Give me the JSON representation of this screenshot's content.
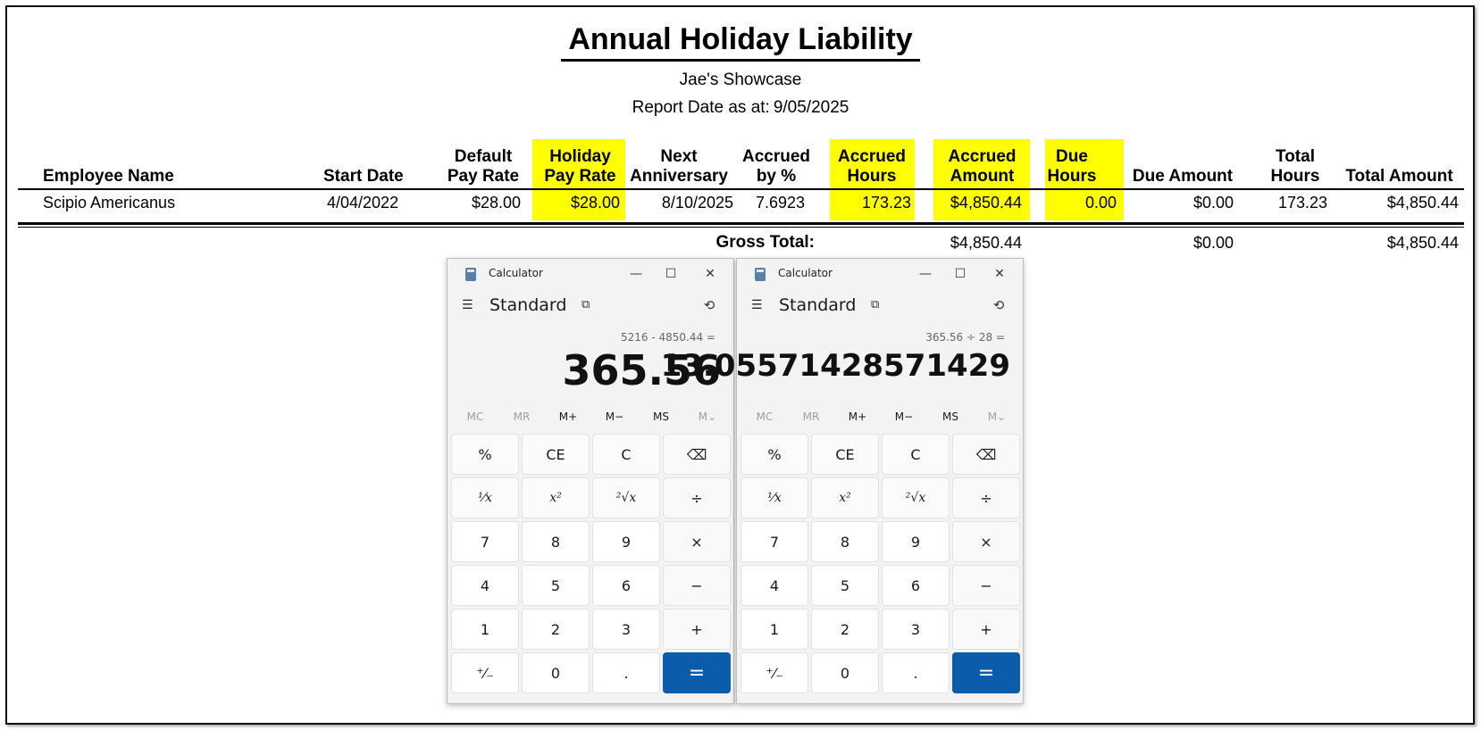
{
  "report": {
    "title": "Annual Holiday Liability",
    "company": "Jae's Showcase",
    "date_label": "Report Date as at:",
    "date_value": "9/05/2025"
  },
  "columns": {
    "employee_name": [
      "Employee Name"
    ],
    "start_date": [
      "Start Date"
    ],
    "default_pay_rate": [
      "Default",
      "Pay Rate"
    ],
    "holiday_pay_rate": [
      "Holiday",
      "Pay Rate"
    ],
    "next_anniversary": [
      "Next",
      "Anniversary"
    ],
    "accrued_pct": [
      "Accrued",
      "by %"
    ],
    "accrued_hours": [
      "Accrued",
      "Hours"
    ],
    "accrued_amount": [
      "Accrued",
      "Amount"
    ],
    "due_hours": [
      "Due",
      "Hours"
    ],
    "due_amount": [
      "Due Amount"
    ],
    "total_hours": [
      "Total",
      "Hours"
    ],
    "total_amount": [
      "Total Amount"
    ]
  },
  "rows": [
    {
      "employee_name": "Scipio Americanus",
      "start_date": "4/04/2022",
      "default_pay_rate": "$28.00",
      "holiday_pay_rate": "$28.00",
      "next_anniversary": "8/10/2025",
      "accrued_pct": "7.6923",
      "accrued_hours": "173.23",
      "accrued_amount": "$4,850.44",
      "due_hours": "0.00",
      "due_amount": "$0.00",
      "total_hours": "173.23",
      "total_amount": "$4,850.44"
    }
  ],
  "gross_total": {
    "label": "Gross Total:",
    "accrued_amount": "$4,850.44",
    "due_amount": "$0.00",
    "total_amount": "$4,850.44"
  },
  "highlight_color": "#ffff00",
  "calculators": [
    {
      "title": "Calculator",
      "mode": "Standard",
      "expression": "5216 - 4850.44 =",
      "display": "365.56"
    },
    {
      "title": "Calculator",
      "mode": "Standard",
      "expression": "365.56 ÷ 28 =",
      "display": "13.05571428571429"
    }
  ],
  "calculator_ui": {
    "window_buttons": [
      "—",
      "☐",
      "✕"
    ],
    "memory": [
      "MC",
      "MR",
      "M+",
      "M−",
      "MS",
      "M⌄"
    ],
    "keys": [
      [
        "%",
        "CE",
        "C",
        "⌫"
      ],
      [
        "¹⁄x",
        "x²",
        "²√x",
        "÷"
      ],
      [
        "7",
        "8",
        "9",
        "×"
      ],
      [
        "4",
        "5",
        "6",
        "−"
      ],
      [
        "1",
        "2",
        "3",
        "+"
      ],
      [
        "⁺⁄₋",
        "0",
        ".",
        "="
      ]
    ],
    "equals_color": "#0b5cab"
  }
}
